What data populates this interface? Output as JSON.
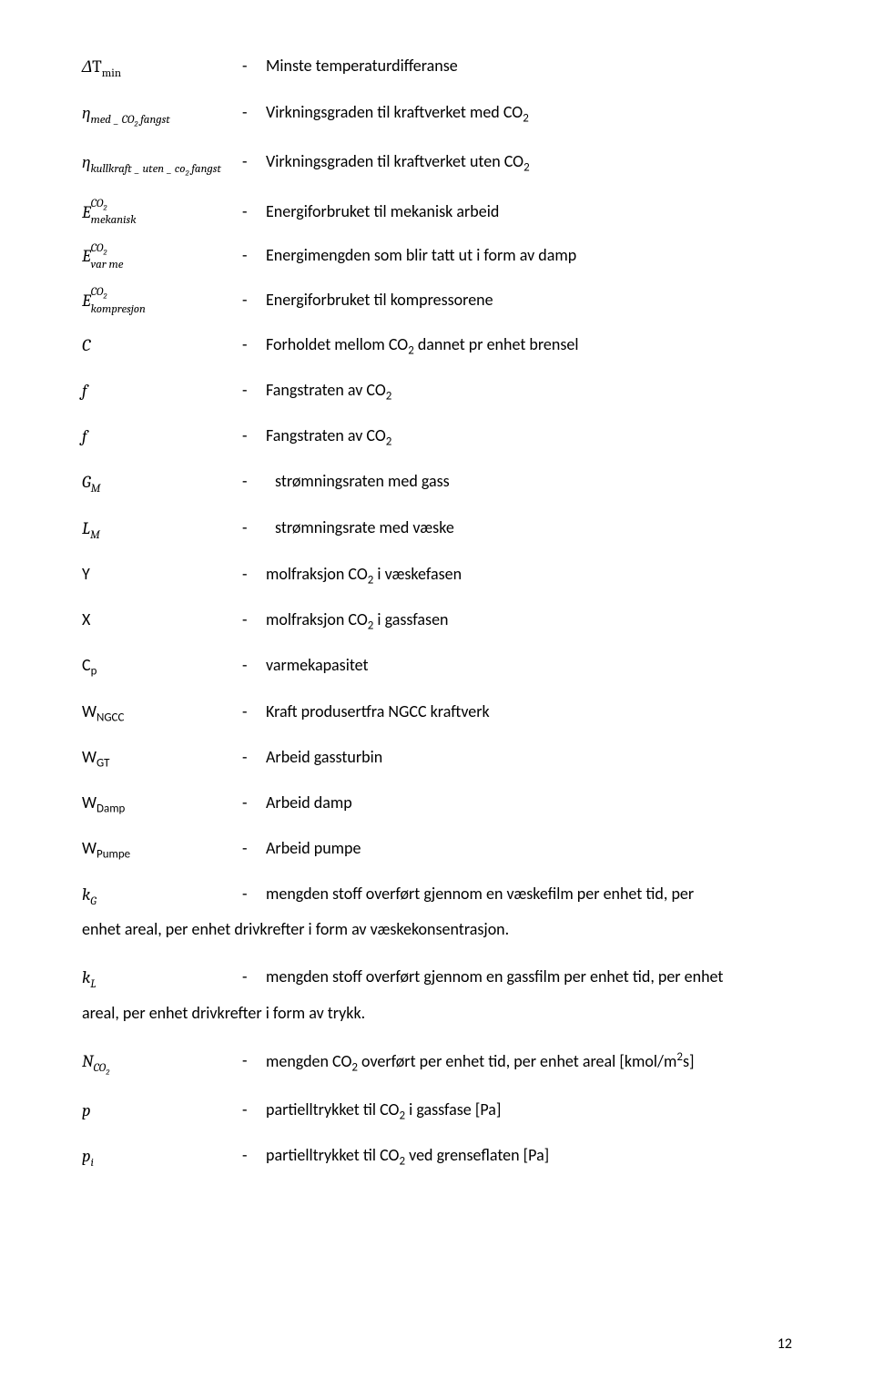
{
  "page_number": "12",
  "dash": "-",
  "font": {
    "body_family": "Calibri",
    "symbol_family": "Cambria",
    "body_size_pt": 13,
    "symbol_size_pt": 14
  },
  "colors": {
    "text": "#000000",
    "background": "#ffffff"
  },
  "rows": [
    {
      "sym_html": "&Delta;<span class='up'>T</span><sub class='up'>min</sub>",
      "desc": "Minste temperaturdifferanse"
    },
    {
      "sym_html": "&eta;<sub><i>med</i> _ <i>CO</i><span class='up'><sub>2</sub></span> <i>fangst</i></sub>",
      "desc_html": "Virkningsgraden til kraftverket med CO<sub>2</sub>"
    },
    {
      "sym_html": "&eta;<sub><i>kullkraft</i> _ <i>uten</i> _ <i>co</i><span class='up'><sub>2</sub></span> <i>fangst</i></sub>",
      "desc_html": "Virkningsgraden til kraftverket uten CO<sub>2</sub>"
    },
    {
      "sym_html": "E<sup><i>CO</i><span class='up'><sub>2</sub></span></sup><sub><i>mekanisk</i></sub>",
      "stack": true,
      "desc": "Energiforbruket til mekanisk arbeid"
    },
    {
      "sym_html": "E<sup><i>CO</i><span class='up'><sub>2</sub></span></sup><sub><i>var me</i></sub>",
      "stack": true,
      "desc": "Energimengden som blir tatt ut i form av damp"
    },
    {
      "sym_html": "E<sup><i>CO</i><span class='up'><sub>2</sub></span></sup><sub><i>kompresjon</i></sub>",
      "stack": true,
      "desc": "Energiforbruket til kompressorene"
    },
    {
      "sym_html": "C",
      "desc_html": "Forholdet mellom CO<sub>2</sub> dannet pr enhet brensel"
    },
    {
      "sym_html": "f",
      "desc_html": "Fangstraten av CO<sub>2</sub>"
    },
    {
      "sym_html": "f",
      "desc_html": "Fangstraten av CO<sub>2</sub>"
    },
    {
      "sym_html": "G<sub>M</sub>",
      "pad_desc": true,
      "desc": "strømningsraten med gass"
    },
    {
      "sym_html": "L<sub>M</sub>",
      "pad_desc": true,
      "desc": "strømningsrate med væske"
    },
    {
      "calibri_sym": "Y",
      "desc_html": "molfraksjon CO<sub>2</sub> i væskefasen"
    },
    {
      "calibri_sym": "X",
      "desc_html": "molfraksjon CO<sub>2</sub> i gassfasen"
    },
    {
      "calibri_sym_html": "C<sub>p</sub>",
      "desc": "varmekapasitet"
    },
    {
      "calibri_sym_html": "W<sub>NGCC</sub>",
      "desc": "Kraft produsertfra NGCC kraftverk"
    },
    {
      "calibri_sym_html": "W<sub>GT</sub>",
      "desc": "Arbeid gassturbin"
    },
    {
      "calibri_sym_html": "W<sub>Damp</sub>",
      "desc": "Arbeid damp"
    },
    {
      "calibri_sym_html": "W<sub>Pumpe</sub>",
      "desc": "Arbeid pumpe"
    },
    {
      "sym_html": "k<sub>G</sub>",
      "multi": true,
      "desc_html": "mengden stoff overført gjennom en væskefilm per enhet tid, per<br>enhet areal, per enhet drivkrefter i form av væskekonsentrasjon.",
      "wrap_under": true
    },
    {
      "sym_html": "k<sub>L</sub>",
      "multi": true,
      "desc_html": "mengden stoff overført gjennom en gassfilm per enhet tid, per enhet<br>areal, per enhet drivkrefter i form av trykk.",
      "wrap_under": true
    },
    {
      "sym_html": "N<sub>CO<span class='up'><sub>2</sub></span></sub>",
      "desc_html": "mengden CO<sub>2</sub> overført per enhet tid, per enhet areal [kmol/m<sup>2</sup>s]"
    },
    {
      "sym_html": "p",
      "desc_html": "partielltrykket til CO<sub>2</sub> i gassfase [Pa]"
    },
    {
      "sym_html": "p<sub>i</sub>",
      "desc_html": "partielltrykket til CO<sub>2</sub> ved grenseflaten [Pa]"
    }
  ]
}
